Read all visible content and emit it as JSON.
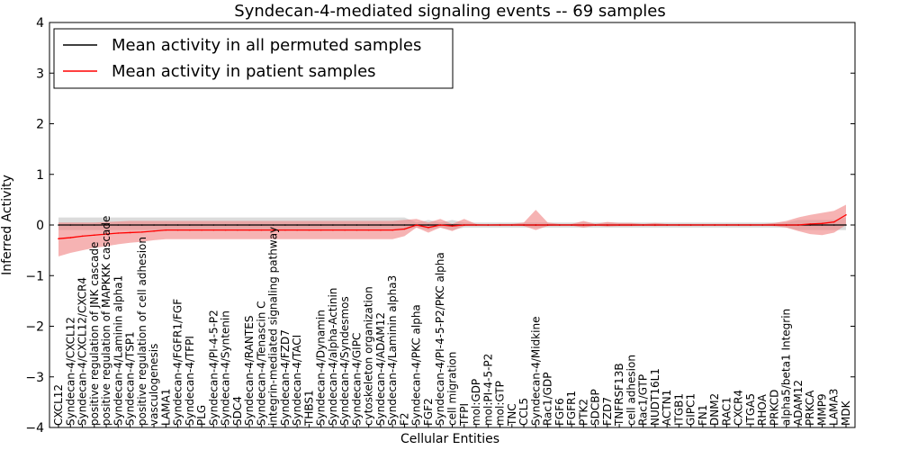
{
  "chart_data": {
    "type": "line",
    "title": "Syndecan-4-mediated signaling events -- 69 samples",
    "xlabel": "Cellular Entities",
    "ylabel": "Inferred Activity",
    "ylim": [
      -4,
      4
    ],
    "yticks": [
      -4,
      -3,
      -2,
      -1,
      0,
      1,
      2,
      3,
      4
    ],
    "ytick_labels": [
      "−4",
      "−3",
      "−2",
      "−1",
      "0",
      "1",
      "2",
      "3",
      "4"
    ],
    "legend_position": "top-left",
    "categories": [
      "CXCL12",
      "Syndecan-4/CXCL12",
      "Syndecan-4/CXCL12/CXCR4",
      "positive regulation of JNK cascade",
      "positive regulation of MAPKKK cascade",
      "Syndecan-4/Laminin alpha1",
      "Syndecan-4/TSP1",
      "positive regulation of cell adhesion",
      "vasculogenesis",
      "LAMA1",
      "Syndecan-4/FGFR1/FGF",
      "Syndecan-4/TFPI",
      "PLG",
      "Syndecan-4/PI-4-5-P2",
      "Syndecan-4/Syntenin",
      "SDC4",
      "Syndecan-4/RANTES",
      "Syndecan-4/Tenascin C",
      "integrin-mediated signaling pathway",
      "Syndecan-4/FZD7",
      "Syndecan-4/TACI",
      "THBS1",
      "Syndecan-4/Dynamin",
      "Syndecan-4/alpha-Actinin",
      "Syndecan-4/Syndesmos",
      "Syndecan-4/GIPC",
      "cytoskeleton organization",
      "Syndecan-4/ADAM12",
      "Syndecan-4/Laminin alpha3",
      "F2",
      "Syndecan-4/PKC alpha",
      "FGF2",
      "Syndecan-4/PI-4-5-P2/PKC alpha",
      "cell migration",
      "TFPI",
      "mol:GDP",
      "mol:PI-4-5-P2",
      "mol:GTP",
      "TNC",
      "CCL5",
      "Syndecan-4/Midkine",
      "Rac1/GDP",
      "FGF6",
      "FGFR1",
      "PTK2",
      "SDCBP",
      "FZD7",
      "TNFRSF13B",
      "cell adhesion",
      "Rac1/GTP",
      "NUDT16L1",
      "ACTN1",
      "ITGB1",
      "GIPC1",
      "FN1",
      "DNM2",
      "RAC1",
      "CXCR4",
      "ITGA5",
      "RHOA",
      "PRKCD",
      "alpha5/beta1 Integrin",
      "ADAM12",
      "PRKCA",
      "MMP9",
      "LAMA3",
      "MDK"
    ],
    "series": [
      {
        "name": "Mean activity in all permuted samples",
        "color": "#000000",
        "band_color": "#b0b0b0",
        "values": [
          0.0,
          0.0,
          0.0,
          0.0,
          0.0,
          0.0,
          0.0,
          0.0,
          0.0,
          0.0,
          0.0,
          0.0,
          0.0,
          0.0,
          0.0,
          0.0,
          0.0,
          0.0,
          0.0,
          0.0,
          0.0,
          0.0,
          0.0,
          0.0,
          0.0,
          0.0,
          0.0,
          0.0,
          0.0,
          0.0,
          0.0,
          0.0,
          0.0,
          0.0,
          0.0,
          0.0,
          0.0,
          0.0,
          0.0,
          0.0,
          0.0,
          0.0,
          0.0,
          0.0,
          0.0,
          0.0,
          0.0,
          0.0,
          0.0,
          0.0,
          0.0,
          0.0,
          0.0,
          0.0,
          0.0,
          0.0,
          0.0,
          0.0,
          0.0,
          0.0,
          0.0,
          0.0,
          0.0,
          0.0,
          0.0,
          0.0,
          0.0
        ],
        "lower": [
          -0.1,
          -0.1,
          -0.1,
          -0.1,
          -0.1,
          -0.1,
          -0.1,
          -0.1,
          -0.1,
          -0.1,
          -0.1,
          -0.1,
          -0.1,
          -0.1,
          -0.1,
          -0.1,
          -0.1,
          -0.1,
          -0.1,
          -0.1,
          -0.1,
          -0.1,
          -0.1,
          -0.1,
          -0.1,
          -0.1,
          -0.1,
          -0.1,
          -0.1,
          -0.1,
          -0.05,
          -0.1,
          -0.05,
          -0.1,
          -0.05,
          -0.05,
          -0.05,
          -0.05,
          -0.05,
          -0.05,
          -0.05,
          -0.05,
          -0.05,
          -0.05,
          -0.05,
          -0.05,
          -0.05,
          -0.05,
          -0.05,
          -0.05,
          -0.05,
          -0.05,
          -0.05,
          -0.05,
          -0.05,
          -0.05,
          -0.05,
          -0.05,
          -0.05,
          -0.05,
          -0.05,
          -0.05,
          -0.1,
          -0.1,
          -0.1,
          -0.1,
          -0.1
        ],
        "upper": [
          0.15,
          0.15,
          0.15,
          0.15,
          0.15,
          0.15,
          0.15,
          0.15,
          0.15,
          0.15,
          0.15,
          0.15,
          0.15,
          0.15,
          0.15,
          0.15,
          0.15,
          0.15,
          0.15,
          0.15,
          0.15,
          0.15,
          0.15,
          0.15,
          0.15,
          0.15,
          0.15,
          0.15,
          0.15,
          0.15,
          0.05,
          0.1,
          0.05,
          0.1,
          0.05,
          0.05,
          0.05,
          0.05,
          0.05,
          0.05,
          0.05,
          0.05,
          0.05,
          0.05,
          0.05,
          0.05,
          0.05,
          0.05,
          0.05,
          0.05,
          0.05,
          0.05,
          0.05,
          0.05,
          0.05,
          0.05,
          0.05,
          0.05,
          0.05,
          0.05,
          0.05,
          0.05,
          0.1,
          0.1,
          0.1,
          0.1,
          0.15
        ]
      },
      {
        "name": "Mean activity in patient samples",
        "color": "#ff0000",
        "band_color": "#f08080",
        "values": [
          -0.27,
          -0.25,
          -0.22,
          -0.2,
          -0.18,
          -0.16,
          -0.15,
          -0.14,
          -0.12,
          -0.1,
          -0.1,
          -0.1,
          -0.1,
          -0.1,
          -0.1,
          -0.1,
          -0.1,
          -0.1,
          -0.1,
          -0.1,
          -0.1,
          -0.1,
          -0.1,
          -0.1,
          -0.1,
          -0.1,
          -0.1,
          -0.1,
          -0.1,
          -0.08,
          0.0,
          -0.05,
          0.0,
          -0.02,
          0.0,
          0.0,
          0.0,
          0.0,
          0.0,
          0.0,
          0.0,
          0.0,
          0.0,
          0.0,
          0.0,
          0.0,
          0.0,
          0.0,
          0.0,
          0.0,
          0.0,
          0.0,
          0.0,
          0.0,
          0.0,
          0.0,
          0.0,
          0.0,
          0.0,
          0.0,
          0.0,
          0.0,
          0.0,
          0.02,
          0.03,
          0.06,
          0.2
        ],
        "lower": [
          -0.62,
          -0.55,
          -0.5,
          -0.45,
          -0.42,
          -0.38,
          -0.35,
          -0.33,
          -0.3,
          -0.28,
          -0.28,
          -0.28,
          -0.28,
          -0.28,
          -0.28,
          -0.28,
          -0.28,
          -0.28,
          -0.28,
          -0.28,
          -0.28,
          -0.28,
          -0.28,
          -0.28,
          -0.28,
          -0.28,
          -0.28,
          -0.28,
          -0.28,
          -0.22,
          -0.05,
          -0.15,
          -0.05,
          -0.12,
          -0.02,
          -0.01,
          -0.01,
          -0.01,
          -0.01,
          -0.02,
          -0.1,
          -0.02,
          -0.01,
          -0.01,
          -0.05,
          -0.01,
          -0.03,
          -0.02,
          -0.02,
          -0.01,
          -0.02,
          -0.01,
          -0.01,
          -0.01,
          -0.01,
          -0.01,
          -0.01,
          -0.01,
          -0.01,
          -0.01,
          -0.02,
          -0.05,
          -0.12,
          -0.18,
          -0.2,
          -0.15,
          0.0
        ],
        "upper": [
          0.05,
          0.05,
          0.05,
          0.05,
          0.06,
          0.07,
          0.08,
          0.08,
          0.08,
          0.08,
          0.08,
          0.08,
          0.08,
          0.08,
          0.08,
          0.08,
          0.08,
          0.08,
          0.08,
          0.08,
          0.08,
          0.08,
          0.08,
          0.08,
          0.08,
          0.08,
          0.08,
          0.08,
          0.08,
          0.1,
          0.12,
          0.05,
          0.12,
          0.02,
          0.12,
          0.02,
          0.01,
          0.02,
          0.02,
          0.05,
          0.3,
          0.05,
          0.02,
          0.02,
          0.08,
          0.02,
          0.06,
          0.04,
          0.04,
          0.02,
          0.04,
          0.02,
          0.02,
          0.02,
          0.02,
          0.02,
          0.02,
          0.02,
          0.02,
          0.02,
          0.04,
          0.08,
          0.15,
          0.2,
          0.24,
          0.28,
          0.4
        ]
      }
    ]
  }
}
